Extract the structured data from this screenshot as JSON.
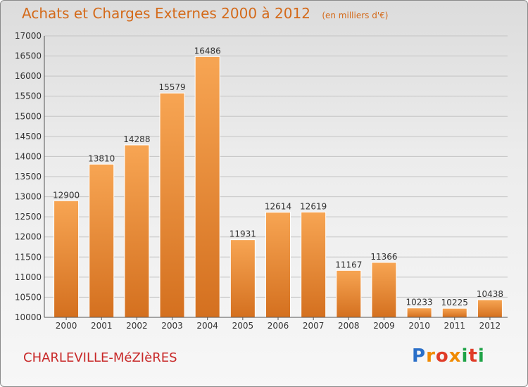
{
  "title": "Achats et Charges Externes 2000 à 2012",
  "unit": "(en milliers d'€)",
  "city": "CHARLEVILLE-MéZIèRES",
  "logo": {
    "text": "Proxiti"
  },
  "colors": {
    "bar_top": "#f7a553",
    "bar_bottom": "#d4701f",
    "title": "#d46a1a",
    "city": "#c82828"
  },
  "chart_data": {
    "type": "bar",
    "categories": [
      "2000",
      "2001",
      "2002",
      "2003",
      "2004",
      "2005",
      "2006",
      "2007",
      "2008",
      "2009",
      "2010",
      "2011",
      "2012"
    ],
    "values": [
      12900,
      13810,
      14288,
      15579,
      16486,
      11931,
      12614,
      12619,
      11167,
      11366,
      10233,
      10225,
      10438
    ],
    "ylim": [
      10000,
      17000
    ],
    "yticks": [
      10000,
      10500,
      11000,
      11500,
      12000,
      12500,
      13000,
      13500,
      14000,
      14500,
      15000,
      15500,
      16000,
      16500,
      17000
    ],
    "grid": true
  }
}
